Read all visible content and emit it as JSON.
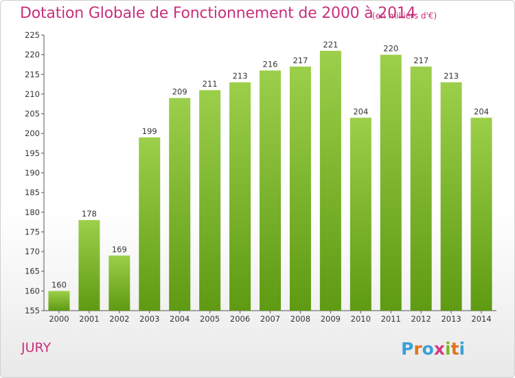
{
  "header": {
    "title": "Dotation Globale de Fonctionnement de 2000 à 2014",
    "subtitle": "(en milliers d'€)"
  },
  "footer": {
    "commune": "JURY",
    "logo_text": "Proxiti"
  },
  "colors": {
    "accent": "#c8307c",
    "bar_top": "#9ccf4a",
    "bar_bottom": "#5e9a12"
  },
  "chart_data": {
    "type": "bar",
    "categories": [
      "2000",
      "2001",
      "2002",
      "2003",
      "2004",
      "2005",
      "2006",
      "2007",
      "2008",
      "2009",
      "2010",
      "2011",
      "2012",
      "2013",
      "2014"
    ],
    "values": [
      160,
      178,
      169,
      199,
      209,
      211,
      213,
      216,
      217,
      221,
      204,
      220,
      217,
      213,
      204
    ],
    "title": "Dotation Globale de Fonctionnement de 2000 à 2014",
    "subtitle": "(en milliers d'€)",
    "ylim": [
      155,
      225
    ],
    "yticks": [
      155,
      160,
      165,
      170,
      175,
      180,
      185,
      190,
      195,
      200,
      205,
      210,
      215,
      220,
      225
    ],
    "grid": false,
    "data_labels": true
  }
}
